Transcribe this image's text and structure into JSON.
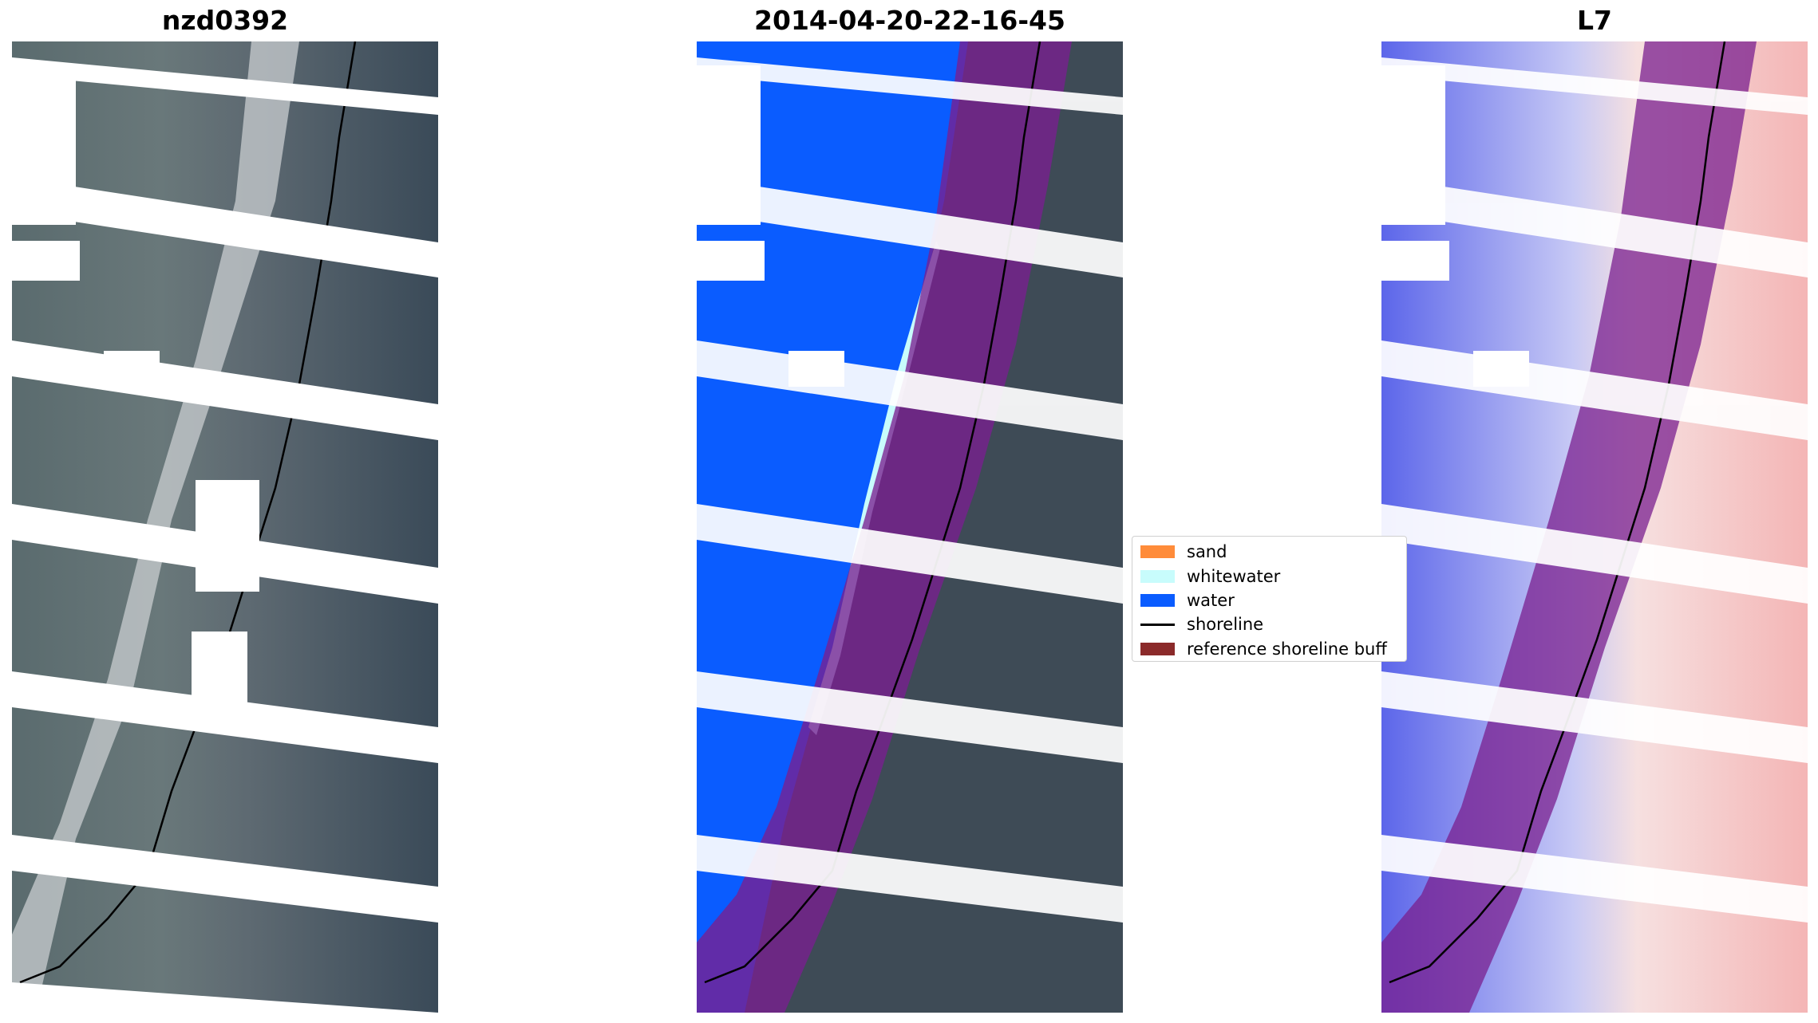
{
  "panels": [
    {
      "title": "nzd0392",
      "view": "rgb"
    },
    {
      "title": "2014-04-20-22-16-45",
      "view": "classified"
    },
    {
      "title": "L7",
      "view": "index"
    }
  ],
  "legend": {
    "items": [
      {
        "label": "sand",
        "color": "#ff8c3a",
        "kind": "patch"
      },
      {
        "label": "whitewater",
        "color": "#c8fcfc",
        "kind": "patch"
      },
      {
        "label": "water",
        "color": "#0a5cff",
        "kind": "patch"
      },
      {
        "label": "shoreline",
        "color": "#000000",
        "kind": "line"
      },
      {
        "label": "reference shoreline buff",
        "color": "#8b2a2a",
        "kind": "patch"
      }
    ]
  },
  "colors": {
    "background_rgb": "#3e4b56",
    "surf_white": "#d9dcdf",
    "water_class": "#0a5cff",
    "whitewater_class": "#c8fcfc",
    "buffer_overlay": "#7a1f8f",
    "index_water": "#4d5ae8",
    "index_land": "#f4b5b5"
  }
}
